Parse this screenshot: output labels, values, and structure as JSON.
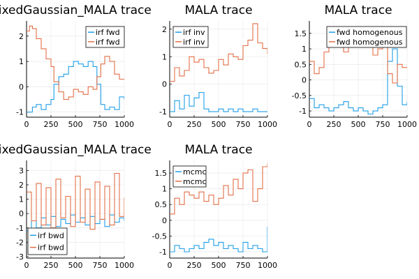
{
  "figure": {
    "background": "#ffffff"
  },
  "chart_data": [
    {
      "type": "line",
      "title": "MixedGaussian_MALA trace",
      "xlabel": "",
      "ylabel": "",
      "xlim": [
        0,
        1000
      ],
      "ylim": [
        -1.2,
        2.6
      ],
      "xticks": [
        0,
        250,
        500,
        750,
        1000
      ],
      "yticks": [
        -1,
        0,
        1,
        2
      ],
      "grid": true,
      "legend_position": "top-right",
      "series": [
        {
          "name": "irf fwd",
          "color": "#1f9ee8",
          "x": [
            0,
            30,
            60,
            100,
            150,
            200,
            250,
            280,
            330,
            380,
            430,
            480,
            530,
            580,
            630,
            680,
            720,
            760,
            800,
            850,
            900,
            950,
            1000
          ],
          "values": [
            -1.0,
            -1.0,
            -0.8,
            -0.7,
            -0.9,
            -0.7,
            -0.5,
            0.1,
            0.4,
            0.5,
            0.8,
            1.0,
            0.9,
            0.8,
            1.0,
            0.8,
            0.1,
            -0.7,
            -0.9,
            -0.8,
            -0.9,
            -0.4,
            -0.5
          ]
        },
        {
          "name": "irf fwd",
          "color": "#e26f46",
          "x": [
            0,
            30,
            60,
            100,
            150,
            200,
            250,
            280,
            330,
            380,
            430,
            480,
            530,
            580,
            630,
            680,
            720,
            760,
            800,
            850,
            900,
            950,
            1000
          ],
          "values": [
            2.2,
            2.4,
            2.3,
            1.9,
            1.5,
            1.1,
            0.8,
            0.2,
            -0.2,
            -0.5,
            -0.4,
            -0.1,
            -0.2,
            -0.3,
            0.0,
            -0.1,
            0.4,
            0.9,
            1.2,
            1.0,
            0.5,
            0.3,
            0.3
          ]
        }
      ]
    },
    {
      "type": "line",
      "title": "MALA trace",
      "xlabel": "",
      "ylabel": "",
      "xlim": [
        0,
        1000
      ],
      "ylim": [
        -1.2,
        2.3
      ],
      "xticks": [
        0,
        250,
        500,
        750,
        1000
      ],
      "yticks": [
        -1,
        0,
        1,
        2
      ],
      "grid": true,
      "legend_position": "top-left",
      "series": [
        {
          "name": "irf inv",
          "color": "#1f9ee8",
          "x": [
            0,
            50,
            100,
            150,
            200,
            250,
            300,
            350,
            400,
            450,
            500,
            550,
            600,
            650,
            700,
            750,
            800,
            850,
            900,
            950,
            1000
          ],
          "values": [
            -1.0,
            -0.6,
            -0.9,
            -0.4,
            -0.8,
            -0.5,
            -0.3,
            -0.9,
            -1.0,
            -1.0,
            -0.9,
            -1.0,
            -0.9,
            -1.0,
            -0.9,
            -1.0,
            -1.0,
            -0.9,
            -1.0,
            -1.0,
            -1.0
          ]
        },
        {
          "name": "irf inv",
          "color": "#e26f46",
          "x": [
            0,
            50,
            100,
            150,
            200,
            250,
            300,
            350,
            400,
            450,
            500,
            550,
            600,
            650,
            700,
            750,
            800,
            850,
            900,
            950,
            1000
          ],
          "values": [
            0.1,
            0.6,
            0.3,
            0.5,
            1.0,
            0.8,
            0.9,
            0.6,
            0.4,
            0.5,
            0.9,
            0.7,
            1.1,
            1.0,
            0.9,
            1.4,
            1.6,
            2.2,
            1.5,
            1.3,
            1.1
          ]
        }
      ]
    },
    {
      "type": "line",
      "title": "MALA trace",
      "xlabel": "",
      "ylabel": "",
      "xlim": [
        0,
        1000
      ],
      "ylim": [
        -1.2,
        1.9
      ],
      "xticks": [
        0,
        250,
        500,
        750,
        1000
      ],
      "yticks": [
        -1.0,
        -0.5,
        0.0,
        0.5,
        1.0,
        1.5
      ],
      "grid": true,
      "legend_position": "top-right",
      "series": [
        {
          "name": "fwd homogenous",
          "color": "#1f9ee8",
          "x": [
            0,
            50,
            100,
            150,
            200,
            250,
            300,
            350,
            400,
            450,
            500,
            550,
            600,
            650,
            700,
            750,
            800,
            850,
            900,
            950,
            1000
          ],
          "values": [
            -0.6,
            -0.9,
            -0.8,
            -0.9,
            -1.0,
            -0.9,
            -0.8,
            -0.7,
            -0.9,
            -1.0,
            -0.9,
            -1.0,
            -1.1,
            -1.0,
            -0.9,
            -0.8,
            0.6,
            1.0,
            -0.2,
            -0.8,
            -0.7
          ]
        },
        {
          "name": "fwd homogenous",
          "color": "#e26f46",
          "x": [
            0,
            50,
            100,
            150,
            200,
            250,
            300,
            350,
            400,
            450,
            500,
            550,
            600,
            650,
            700,
            750,
            800,
            850,
            900,
            950,
            1000
          ],
          "values": [
            0.6,
            0.2,
            0.4,
            0.9,
            1.1,
            1.4,
            1.2,
            0.9,
            1.5,
            1.6,
            1.3,
            1.1,
            1.2,
            0.8,
            1.0,
            1.5,
            0.2,
            -0.1,
            0.5,
            0.4,
            0.4
          ]
        }
      ]
    },
    {
      "type": "line",
      "title": "MixedGaussian_MALA trace",
      "xlabel": "",
      "ylabel": "",
      "xlim": [
        0,
        1000
      ],
      "ylim": [
        -3.1,
        3.7
      ],
      "xticks": [
        0,
        250,
        500,
        750,
        1000
      ],
      "yticks": [
        -3,
        -2,
        -1,
        0,
        1,
        2,
        3
      ],
      "grid": true,
      "legend_position": "bottom-left",
      "series": [
        {
          "name": "irf bwd",
          "color": "#1f9ee8",
          "x": [
            0,
            50,
            100,
            150,
            200,
            250,
            300,
            350,
            400,
            450,
            500,
            550,
            600,
            650,
            700,
            750,
            800,
            850,
            900,
            950,
            1000
          ],
          "values": [
            -1.2,
            -0.5,
            -1.0,
            -0.3,
            -0.8,
            -0.2,
            -0.9,
            -0.4,
            -0.7,
            -0.1,
            -0.6,
            -0.3,
            -0.8,
            -0.2,
            -0.7,
            -0.4,
            -0.9,
            -0.1,
            -0.6,
            -0.3,
            -0.5
          ]
        },
        {
          "name": "irf bwd",
          "color": "#e26f46",
          "x": [
            0,
            50,
            100,
            150,
            200,
            250,
            300,
            350,
            400,
            450,
            500,
            550,
            600,
            650,
            700,
            750,
            800,
            850,
            900,
            950,
            1000
          ],
          "values": [
            1.5,
            -0.5,
            2.1,
            -0.8,
            1.8,
            -1.0,
            2.4,
            -0.3,
            1.2,
            -0.9,
            2.6,
            -0.6,
            1.7,
            -1.1,
            2.2,
            -0.4,
            1.9,
            -0.8,
            2.8,
            -0.2,
            1.1
          ]
        }
      ]
    },
    {
      "type": "line",
      "title": "MALA trace",
      "xlabel": "",
      "ylabel": "",
      "xlim": [
        0,
        1000
      ],
      "ylim": [
        -1.2,
        1.9
      ],
      "xticks": [
        0,
        250,
        500,
        750,
        1000
      ],
      "yticks": [
        -1.0,
        -0.5,
        0.0,
        0.5,
        1.0,
        1.5
      ],
      "grid": true,
      "legend_position": "top-left",
      "series": [
        {
          "name": "mcmc",
          "color": "#1f9ee8",
          "x": [
            0,
            50,
            100,
            150,
            200,
            250,
            300,
            350,
            400,
            450,
            500,
            550,
            600,
            650,
            700,
            750,
            800,
            850,
            900,
            950,
            1000
          ],
          "values": [
            -1.0,
            -0.8,
            -0.9,
            -1.0,
            -0.9,
            -0.8,
            -0.9,
            -0.7,
            -0.6,
            -0.8,
            -0.7,
            -0.9,
            -0.8,
            -0.9,
            -1.0,
            -0.7,
            -0.9,
            -0.8,
            -0.9,
            -1.0,
            -0.2
          ]
        },
        {
          "name": "mcmc",
          "color": "#e26f46",
          "x": [
            0,
            50,
            100,
            150,
            200,
            250,
            300,
            350,
            400,
            450,
            500,
            550,
            600,
            650,
            700,
            750,
            800,
            850,
            900,
            950,
            1000
          ],
          "values": [
            0.2,
            0.7,
            0.5,
            0.9,
            0.8,
            0.7,
            0.9,
            0.6,
            0.8,
            0.5,
            0.7,
            1.1,
            0.8,
            1.3,
            1.0,
            1.5,
            1.6,
            0.6,
            1.0,
            1.7,
            1.8
          ]
        }
      ]
    }
  ]
}
